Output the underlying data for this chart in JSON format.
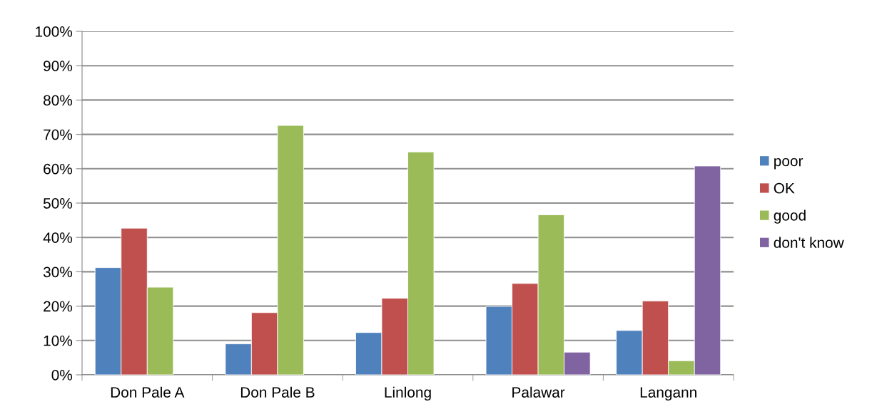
{
  "chart_data": {
    "type": "bar",
    "categories": [
      "Don Pale A",
      "Don Pale B",
      "Linlong",
      "Palawar",
      "Langann"
    ],
    "series": [
      {
        "name": "poor",
        "color": "#4f81bd",
        "values": [
          31.2,
          9.0,
          12.3,
          19.9,
          12.9
        ]
      },
      {
        "name": "OK",
        "color": "#c0504d",
        "values": [
          42.7,
          18.1,
          22.3,
          26.6,
          21.5
        ]
      },
      {
        "name": "good",
        "color": "#9bbb59",
        "values": [
          25.5,
          72.6,
          64.9,
          46.6,
          4.1
        ]
      },
      {
        "name": "don't know",
        "color": "#8064a2",
        "values": [
          null,
          null,
          null,
          6.6,
          60.8
        ]
      }
    ],
    "ylim": [
      0,
      100
    ],
    "yticks": [
      {
        "value": 0,
        "label": "0%"
      },
      {
        "value": 10,
        "label": "10%"
      },
      {
        "value": 20,
        "label": "20%"
      },
      {
        "value": 30,
        "label": "30%"
      },
      {
        "value": 40,
        "label": "40%"
      },
      {
        "value": 50,
        "label": "50%"
      },
      {
        "value": 60,
        "label": "60%"
      },
      {
        "value": 70,
        "label": "70%"
      },
      {
        "value": 80,
        "label": "80%"
      },
      {
        "value": 90,
        "label": "90%"
      },
      {
        "value": 100,
        "label": "100%"
      }
    ],
    "grid": "y",
    "legend": "right"
  }
}
